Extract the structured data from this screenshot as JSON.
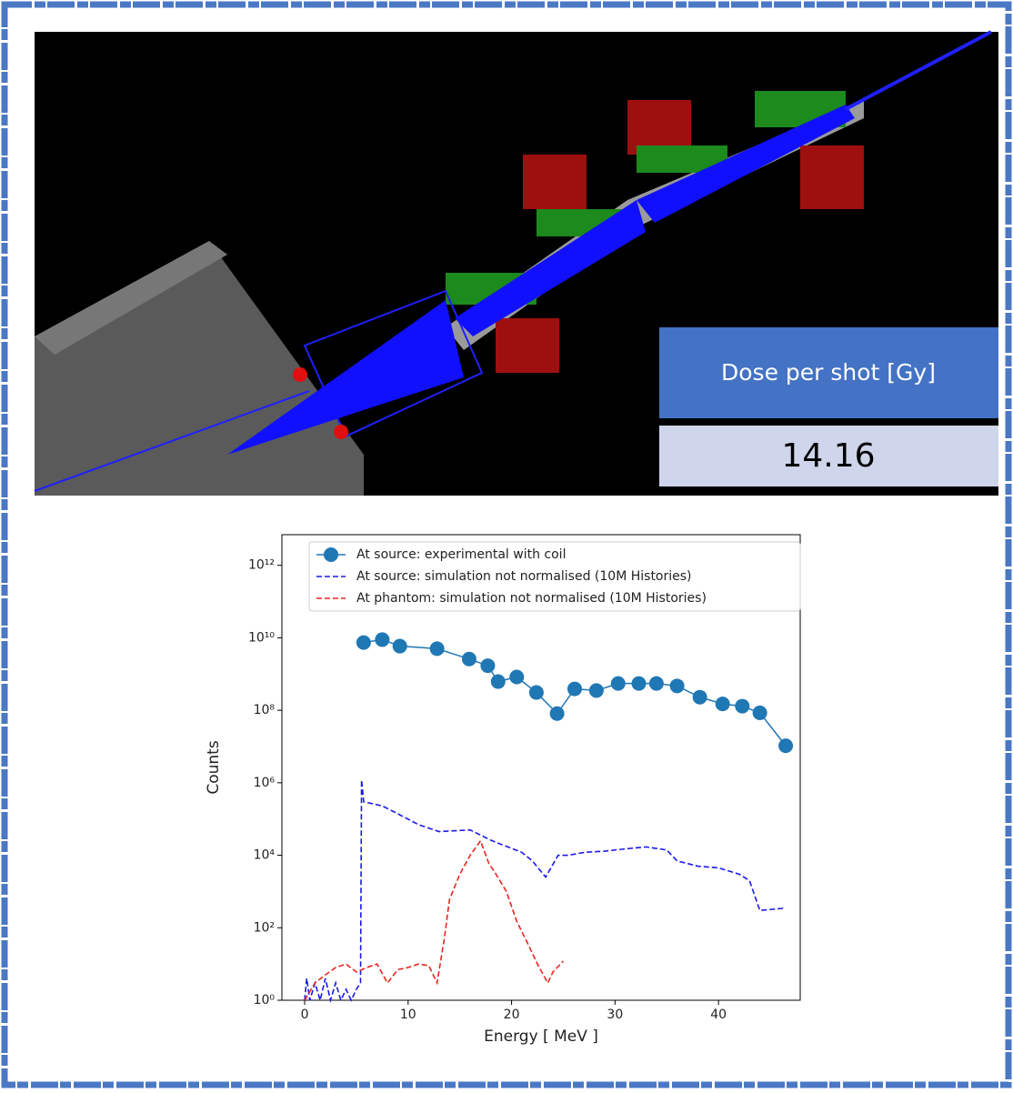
{
  "dose_panel": {
    "label": "Dose per shot [Gy]",
    "value": "14.16"
  },
  "chart_data": {
    "type": "line",
    "xlabel": "Energy [ MeV ]",
    "ylabel": "Counts",
    "xlim": [
      -2.2,
      47.9
    ],
    "xticks": [
      0,
      10,
      20,
      30,
      40
    ],
    "ylim": [
      1,
      7000000000000.0
    ],
    "yscale": "log",
    "yticks": [
      {
        "value": 1,
        "label": "10⁰"
      },
      {
        "value": 100,
        "label": "10²"
      },
      {
        "value": 10000,
        "label": "10⁴"
      },
      {
        "value": 1000000,
        "label": "10⁶"
      },
      {
        "value": 100000000,
        "label": "10⁸"
      },
      {
        "value": 10000000000,
        "label": "10¹⁰"
      },
      {
        "value": 1000000000000,
        "label": "10¹²"
      }
    ],
    "legend": "upper left",
    "series": [
      {
        "name": "At source: experimental with coil",
        "color": "#1f77b4",
        "style": "solid",
        "marker": "o",
        "x": [
          5.7,
          7.5,
          9.2,
          12.8,
          15.9,
          17.7,
          18.7,
          20.5,
          22.4,
          24.4,
          26.1,
          28.2,
          30.3,
          32.3,
          34.0,
          36.0,
          38.2,
          40.4,
          42.3,
          44.0,
          46.5
        ],
        "values": [
          7400000000.0,
          8900000000.0,
          5900000000.0,
          5000000000.0,
          2600000000.0,
          1700000000.0,
          620000000.0,
          830000000.0,
          310000000.0,
          81000000.0,
          390000000.0,
          350000000.0,
          550000000.0,
          550000000.0,
          550000000.0,
          470000000.0,
          230000000.0,
          150000000.0,
          130000000.0,
          85000000.0,
          10500000.0
        ]
      },
      {
        "name": "At source: simulation not normalised (10M Histories)",
        "color": "#1a1ae6",
        "style": "dashed",
        "marker": "none",
        "x": [
          0,
          0.2,
          0.5,
          1,
          1.5,
          2,
          2.5,
          3,
          3.5,
          4,
          4.5,
          5,
          5.4,
          5.5,
          5.7,
          7.5,
          9,
          11,
          13,
          16,
          18,
          19,
          21,
          22,
          23.3,
          24.5,
          25.5,
          27,
          29,
          31,
          33,
          35,
          36,
          38,
          40,
          42,
          43,
          44,
          46.5
        ],
        "values": [
          1,
          4,
          1,
          3,
          1,
          4,
          1,
          3,
          1,
          2,
          1,
          2,
          3,
          1200000,
          300000,
          230000,
          140000,
          70000,
          45000,
          50000,
          26000,
          20000,
          12000,
          7000,
          2500,
          10000,
          10000,
          12000,
          13000,
          15000,
          17000,
          14000,
          7000,
          5000,
          4500,
          3000,
          2000,
          300,
          350
        ]
      },
      {
        "name": "At phantom: simulation not normalised (10M Histories)",
        "color": "#e6261f",
        "style": "dashed",
        "marker": "none",
        "x": [
          0,
          1,
          2,
          3,
          4,
          5,
          6,
          7,
          8,
          9,
          10,
          11,
          12,
          12.8,
          13.5,
          14,
          15,
          16,
          17,
          17.8,
          18.5,
          19.5,
          20.5,
          21.5,
          22.5,
          23.5,
          24,
          25
        ],
        "values": [
          1,
          3,
          5,
          8,
          10,
          6,
          8,
          10,
          3,
          7,
          8,
          10,
          9,
          3,
          50,
          600,
          3000,
          10000,
          25000,
          6000,
          3000,
          1000,
          150,
          40,
          10,
          3,
          6,
          12
        ]
      }
    ]
  }
}
